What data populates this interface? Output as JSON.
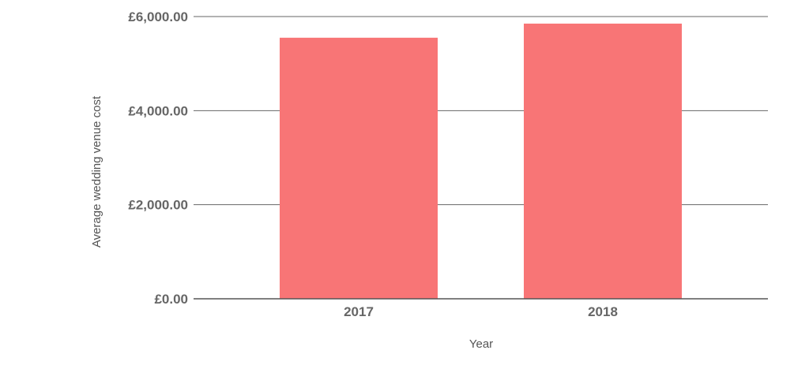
{
  "chart_data": {
    "type": "bar",
    "categories": [
      "2017",
      "2018"
    ],
    "values": [
      5550,
      5850
    ],
    "xlabel": "Year",
    "ylabel": "Average wedding venue cost",
    "ylim": [
      0,
      6000
    ],
    "yticks": [
      0,
      2000,
      4000,
      6000
    ],
    "ytick_labels": [
      "£0.00",
      "£2,000.00",
      "£4,000.00",
      "£6,000.00"
    ],
    "grid": true,
    "bar_color": "#f87576",
    "grid_color": "#666666"
  }
}
